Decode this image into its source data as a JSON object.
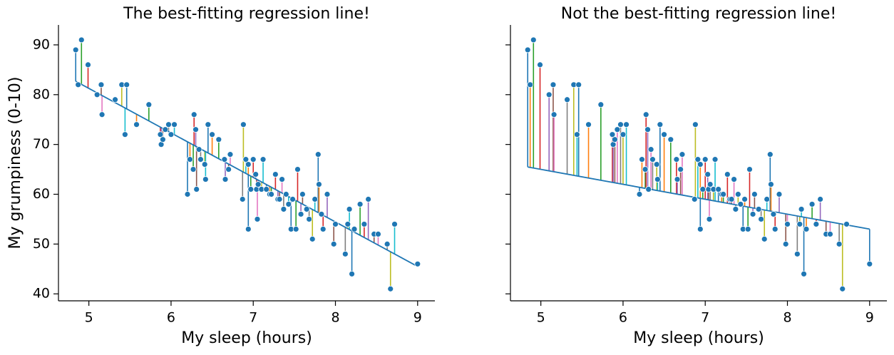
{
  "chart_data": [
    {
      "type": "scatter",
      "title": "The best-fitting regression line!",
      "xlabel": "My sleep (hours)",
      "ylabel": "My grumpiness (0-10)",
      "xlim": [
        4.63,
        9.21
      ],
      "ylim": [
        38.6,
        94.0
      ],
      "xticks": [
        5,
        6,
        7,
        8,
        9
      ],
      "yticks": [
        40,
        50,
        60,
        70,
        80,
        90
      ],
      "ytick_labels": true,
      "color": "#1f77b4",
      "residual_colors": [
        "#1f77b4",
        "#ff7f0e",
        "#2ca02c",
        "#d62728",
        "#9467bd",
        "#8c564b",
        "#e377c2",
        "#7f7f7f",
        "#bcbd22",
        "#17becf"
      ],
      "fit": {
        "intercept": 125.96,
        "slope": -8.94
      },
      "x": [
        4.84,
        4.87,
        4.91,
        4.99,
        5.1,
        5.15,
        5.16,
        5.32,
        5.4,
        5.44,
        5.46,
        5.58,
        5.73,
        5.87,
        5.88,
        5.9,
        5.93,
        5.97,
        6.0,
        6.04,
        6.2,
        6.23,
        6.27,
        6.28,
        6.3,
        6.31,
        6.34,
        6.36,
        6.41,
        6.42,
        6.45,
        6.5,
        6.58,
        6.65,
        6.66,
        6.7,
        6.72,
        6.87,
        6.88,
        6.91,
        6.94,
        6.94,
        6.97,
        7.0,
        7.03,
        7.04,
        7.05,
        7.06,
        7.1,
        7.12,
        7.16,
        7.2,
        7.22,
        7.27,
        7.3,
        7.32,
        7.35,
        7.37,
        7.4,
        7.43,
        7.46,
        7.48,
        7.52,
        7.54,
        7.58,
        7.6,
        7.65,
        7.68,
        7.72,
        7.75,
        7.79,
        7.8,
        7.83,
        7.85,
        7.9,
        7.98,
        8.0,
        8.12,
        8.15,
        8.17,
        8.2,
        8.23,
        8.3,
        8.35,
        8.4,
        8.47,
        8.52,
        8.63,
        8.67,
        8.72,
        9.0
      ],
      "y": [
        89,
        82,
        91,
        86,
        80,
        82,
        76,
        79,
        82,
        72,
        82,
        74,
        78,
        72,
        70,
        71,
        73,
        74,
        72,
        74,
        60,
        67,
        65,
        76,
        73,
        61,
        69,
        67,
        66,
        63,
        74,
        72,
        71,
        67,
        63,
        65,
        68,
        59,
        74,
        67,
        53,
        66,
        61,
        67,
        64,
        61,
        55,
        62,
        61,
        67,
        61,
        60,
        60,
        64,
        59,
        59,
        63,
        57,
        60,
        58,
        53,
        59,
        53,
        65,
        56,
        60,
        57,
        55,
        51,
        59,
        68,
        62,
        56,
        53,
        60,
        50,
        54,
        48,
        54,
        57,
        44,
        53,
        58,
        54,
        59,
        52,
        52,
        50,
        41,
        54,
        46
      ]
    },
    {
      "type": "scatter",
      "title": "Not the best-fitting regression line!",
      "xlabel": "My sleep (hours)",
      "xlim": [
        4.63,
        9.21
      ],
      "ylim": [
        38.6,
        94.0
      ],
      "xticks": [
        5,
        6,
        7,
        8,
        9
      ],
      "yticks": [
        40,
        50,
        60,
        70,
        80,
        90
      ],
      "ytick_labels": false,
      "color": "#1f77b4",
      "residual_colors": [
        "#1f77b4",
        "#ff7f0e",
        "#2ca02c",
        "#d62728",
        "#9467bd",
        "#8c564b",
        "#e377c2",
        "#7f7f7f",
        "#bcbd22",
        "#17becf"
      ],
      "fit": {
        "intercept": 80.0,
        "slope": -3.0
      },
      "x": [
        4.84,
        4.87,
        4.91,
        4.99,
        5.1,
        5.15,
        5.16,
        5.32,
        5.4,
        5.44,
        5.46,
        5.58,
        5.73,
        5.87,
        5.88,
        5.9,
        5.93,
        5.97,
        6.0,
        6.04,
        6.2,
        6.23,
        6.27,
        6.28,
        6.3,
        6.31,
        6.34,
        6.36,
        6.41,
        6.42,
        6.45,
        6.5,
        6.58,
        6.65,
        6.66,
        6.7,
        6.72,
        6.87,
        6.88,
        6.91,
        6.94,
        6.94,
        6.97,
        7.0,
        7.03,
        7.04,
        7.05,
        7.06,
        7.1,
        7.12,
        7.16,
        7.2,
        7.22,
        7.27,
        7.3,
        7.32,
        7.35,
        7.37,
        7.4,
        7.43,
        7.46,
        7.48,
        7.52,
        7.54,
        7.58,
        7.6,
        7.65,
        7.68,
        7.72,
        7.75,
        7.79,
        7.8,
        7.83,
        7.85,
        7.9,
        7.98,
        8.0,
        8.12,
        8.15,
        8.17,
        8.2,
        8.23,
        8.3,
        8.35,
        8.4,
        8.47,
        8.52,
        8.63,
        8.67,
        8.72,
        9.0
      ],
      "y": [
        89,
        82,
        91,
        86,
        80,
        82,
        76,
        79,
        82,
        72,
        82,
        74,
        78,
        72,
        70,
        71,
        73,
        74,
        72,
        74,
        60,
        67,
        65,
        76,
        73,
        61,
        69,
        67,
        66,
        63,
        74,
        72,
        71,
        67,
        63,
        65,
        68,
        59,
        74,
        67,
        53,
        66,
        61,
        67,
        64,
        61,
        55,
        62,
        61,
        67,
        61,
        60,
        60,
        64,
        59,
        59,
        63,
        57,
        60,
        58,
        53,
        59,
        53,
        65,
        56,
        60,
        57,
        55,
        51,
        59,
        68,
        62,
        56,
        53,
        60,
        50,
        54,
        48,
        54,
        57,
        44,
        53,
        58,
        54,
        59,
        52,
        52,
        50,
        41,
        54,
        46
      ]
    }
  ]
}
